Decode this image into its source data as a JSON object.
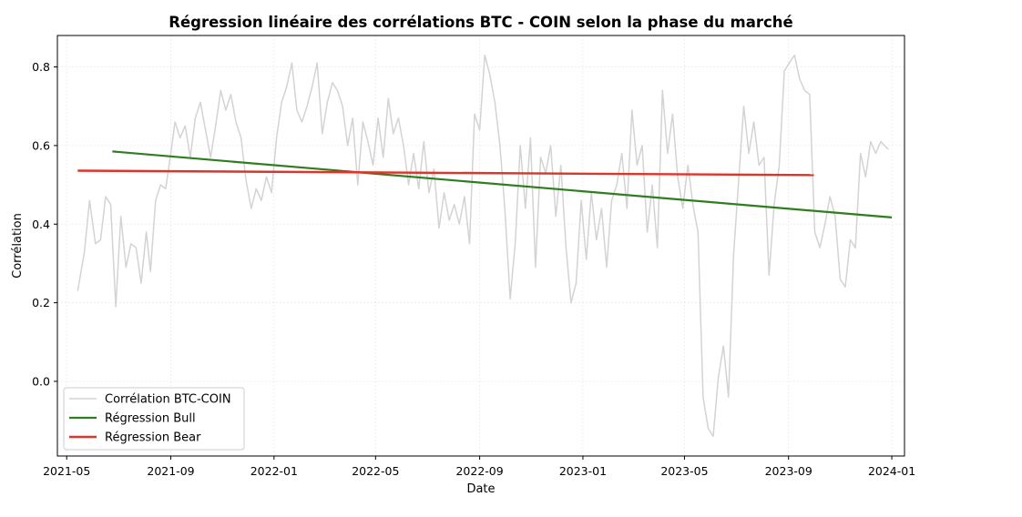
{
  "chart_data": {
    "type": "line",
    "title": "Régression linéaire des corrélations BTC - COIN selon la phase du marché",
    "xlabel": "Date",
    "ylabel": "Corrélation",
    "x_ticks": [
      "2021-05",
      "2021-09",
      "2022-01",
      "2022-05",
      "2022-09",
      "2023-01",
      "2023-05",
      "2023-09",
      "2024-01"
    ],
    "y_ticks": [
      "0.0",
      "0.2",
      "0.4",
      "0.6",
      "0.8"
    ],
    "xlim": [
      "2021-04-20",
      "2024-01-16"
    ],
    "ylim": [
      -0.19,
      0.88
    ],
    "grid": true,
    "legend_position": "lower-left",
    "series": [
      {
        "name": "Corrélation BTC-COIN",
        "color": "#d3d3d3",
        "points": [
          [
            "2021-05-14",
            0.23
          ],
          [
            "2021-05-22",
            0.33
          ],
          [
            "2021-05-28",
            0.46
          ],
          [
            "2021-06-04",
            0.35
          ],
          [
            "2021-06-10",
            0.36
          ],
          [
            "2021-06-16",
            0.47
          ],
          [
            "2021-06-22",
            0.45
          ],
          [
            "2021-06-28",
            0.19
          ],
          [
            "2021-07-04",
            0.42
          ],
          [
            "2021-07-10",
            0.29
          ],
          [
            "2021-07-16",
            0.35
          ],
          [
            "2021-07-22",
            0.34
          ],
          [
            "2021-07-28",
            0.25
          ],
          [
            "2021-08-03",
            0.38
          ],
          [
            "2021-08-08",
            0.28
          ],
          [
            "2021-08-14",
            0.46
          ],
          [
            "2021-08-20",
            0.5
          ],
          [
            "2021-08-26",
            0.49
          ],
          [
            "2021-09-01",
            0.58
          ],
          [
            "2021-09-06",
            0.66
          ],
          [
            "2021-09-12",
            0.62
          ],
          [
            "2021-09-18",
            0.65
          ],
          [
            "2021-09-24",
            0.57
          ],
          [
            "2021-09-30",
            0.67
          ],
          [
            "2021-10-06",
            0.71
          ],
          [
            "2021-10-12",
            0.64
          ],
          [
            "2021-10-18",
            0.57
          ],
          [
            "2021-10-24",
            0.65
          ],
          [
            "2021-10-30",
            0.74
          ],
          [
            "2021-11-05",
            0.69
          ],
          [
            "2021-11-11",
            0.73
          ],
          [
            "2021-11-17",
            0.66
          ],
          [
            "2021-11-23",
            0.62
          ],
          [
            "2021-11-29",
            0.51
          ],
          [
            "2021-12-05",
            0.44
          ],
          [
            "2021-12-11",
            0.49
          ],
          [
            "2021-12-17",
            0.46
          ],
          [
            "2021-12-23",
            0.52
          ],
          [
            "2021-12-29",
            0.48
          ],
          [
            "2022-01-04",
            0.62
          ],
          [
            "2022-01-10",
            0.71
          ],
          [
            "2022-01-16",
            0.75
          ],
          [
            "2022-01-22",
            0.81
          ],
          [
            "2022-01-28",
            0.69
          ],
          [
            "2022-02-03",
            0.66
          ],
          [
            "2022-02-09",
            0.7
          ],
          [
            "2022-02-15",
            0.75
          ],
          [
            "2022-02-21",
            0.81
          ],
          [
            "2022-02-27",
            0.63
          ],
          [
            "2022-03-05",
            0.71
          ],
          [
            "2022-03-11",
            0.76
          ],
          [
            "2022-03-17",
            0.74
          ],
          [
            "2022-03-23",
            0.7
          ],
          [
            "2022-03-29",
            0.6
          ],
          [
            "2022-04-04",
            0.67
          ],
          [
            "2022-04-10",
            0.5
          ],
          [
            "2022-04-16",
            0.66
          ],
          [
            "2022-04-22",
            0.61
          ],
          [
            "2022-04-28",
            0.55
          ],
          [
            "2022-05-04",
            0.67
          ],
          [
            "2022-05-10",
            0.57
          ],
          [
            "2022-05-16",
            0.72
          ],
          [
            "2022-05-22",
            0.63
          ],
          [
            "2022-05-28",
            0.67
          ],
          [
            "2022-06-03",
            0.6
          ],
          [
            "2022-06-09",
            0.5
          ],
          [
            "2022-06-15",
            0.58
          ],
          [
            "2022-06-21",
            0.49
          ],
          [
            "2022-06-27",
            0.61
          ],
          [
            "2022-07-03",
            0.48
          ],
          [
            "2022-07-09",
            0.54
          ],
          [
            "2022-07-15",
            0.39
          ],
          [
            "2022-07-21",
            0.48
          ],
          [
            "2022-07-27",
            0.41
          ],
          [
            "2022-08-02",
            0.45
          ],
          [
            "2022-08-08",
            0.4
          ],
          [
            "2022-08-14",
            0.47
          ],
          [
            "2022-08-20",
            0.35
          ],
          [
            "2022-08-26",
            0.68
          ],
          [
            "2022-09-01",
            0.64
          ],
          [
            "2022-09-07",
            0.83
          ],
          [
            "2022-09-13",
            0.78
          ],
          [
            "2022-09-19",
            0.71
          ],
          [
            "2022-09-25",
            0.6
          ],
          [
            "2022-10-01",
            0.43
          ],
          [
            "2022-10-07",
            0.21
          ],
          [
            "2022-10-13",
            0.35
          ],
          [
            "2022-10-19",
            0.6
          ],
          [
            "2022-10-25",
            0.44
          ],
          [
            "2022-10-31",
            0.62
          ],
          [
            "2022-11-06",
            0.29
          ],
          [
            "2022-11-12",
            0.57
          ],
          [
            "2022-11-18",
            0.53
          ],
          [
            "2022-11-24",
            0.6
          ],
          [
            "2022-11-30",
            0.42
          ],
          [
            "2022-12-06",
            0.55
          ],
          [
            "2022-12-12",
            0.34
          ],
          [
            "2022-12-18",
            0.2
          ],
          [
            "2022-12-24",
            0.25
          ],
          [
            "2022-12-30",
            0.46
          ],
          [
            "2023-01-05",
            0.31
          ],
          [
            "2023-01-11",
            0.48
          ],
          [
            "2023-01-17",
            0.36
          ],
          [
            "2023-01-23",
            0.44
          ],
          [
            "2023-01-29",
            0.29
          ],
          [
            "2023-02-04",
            0.46
          ],
          [
            "2023-02-10",
            0.5
          ],
          [
            "2023-02-16",
            0.58
          ],
          [
            "2023-02-22",
            0.44
          ],
          [
            "2023-02-28",
            0.69
          ],
          [
            "2023-03-06",
            0.55
          ],
          [
            "2023-03-12",
            0.6
          ],
          [
            "2023-03-18",
            0.38
          ],
          [
            "2023-03-24",
            0.5
          ],
          [
            "2023-03-30",
            0.34
          ],
          [
            "2023-04-05",
            0.74
          ],
          [
            "2023-04-11",
            0.58
          ],
          [
            "2023-04-17",
            0.68
          ],
          [
            "2023-04-23",
            0.52
          ],
          [
            "2023-04-29",
            0.44
          ],
          [
            "2023-05-05",
            0.55
          ],
          [
            "2023-05-11",
            0.45
          ],
          [
            "2023-05-17",
            0.38
          ],
          [
            "2023-05-23",
            -0.04
          ],
          [
            "2023-05-29",
            -0.12
          ],
          [
            "2023-06-04",
            -0.14
          ],
          [
            "2023-06-10",
            0.01
          ],
          [
            "2023-06-16",
            0.09
          ],
          [
            "2023-06-22",
            -0.04
          ],
          [
            "2023-06-28",
            0.32
          ],
          [
            "2023-07-04",
            0.51
          ],
          [
            "2023-07-10",
            0.7
          ],
          [
            "2023-07-16",
            0.58
          ],
          [
            "2023-07-22",
            0.66
          ],
          [
            "2023-07-28",
            0.55
          ],
          [
            "2023-08-03",
            0.57
          ],
          [
            "2023-08-09",
            0.27
          ],
          [
            "2023-08-15",
            0.45
          ],
          [
            "2023-08-21",
            0.55
          ],
          [
            "2023-08-27",
            0.79
          ],
          [
            "2023-09-02",
            0.81
          ],
          [
            "2023-09-08",
            0.83
          ],
          [
            "2023-09-14",
            0.77
          ],
          [
            "2023-09-20",
            0.74
          ],
          [
            "2023-09-26",
            0.73
          ],
          [
            "2023-10-02",
            0.38
          ],
          [
            "2023-10-08",
            0.34
          ],
          [
            "2023-10-14",
            0.4
          ],
          [
            "2023-10-20",
            0.47
          ],
          [
            "2023-10-26",
            0.42
          ],
          [
            "2023-11-01",
            0.26
          ],
          [
            "2023-11-07",
            0.24
          ],
          [
            "2023-11-13",
            0.36
          ],
          [
            "2023-11-19",
            0.34
          ],
          [
            "2023-11-25",
            0.58
          ],
          [
            "2023-12-01",
            0.52
          ],
          [
            "2023-12-07",
            0.61
          ],
          [
            "2023-12-13",
            0.58
          ],
          [
            "2023-12-19",
            0.61
          ],
          [
            "2023-12-28",
            0.59
          ]
        ]
      },
      {
        "name": "Régression Bull",
        "color": "#2e7d1e",
        "points": [
          [
            "2021-06-24",
            0.585
          ],
          [
            "2024-01-01",
            0.417
          ]
        ]
      },
      {
        "name": "Régression Bear",
        "color": "#e0342a",
        "points": [
          [
            "2021-05-14",
            0.536
          ],
          [
            "2023-10-01",
            0.525
          ]
        ]
      }
    ]
  }
}
